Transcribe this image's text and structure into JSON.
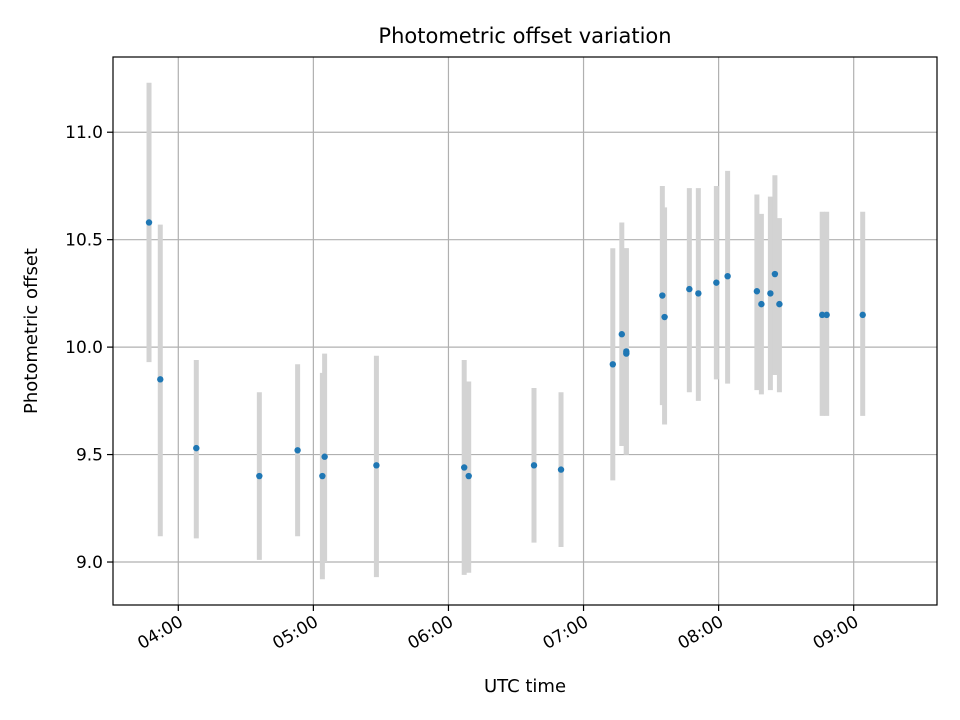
{
  "chart_data": {
    "type": "scatter",
    "title": "Photometric offset variation",
    "xlabel": "UTC time",
    "ylabel": "Photometric offset",
    "x_unit": "UTC time (HH:MM)",
    "xlim": [
      "03:31",
      "09:37"
    ],
    "ylim": [
      8.8,
      11.35
    ],
    "x_ticks": [
      "04:00",
      "05:00",
      "06:00",
      "07:00",
      "08:00",
      "09:00"
    ],
    "y_ticks": [
      "9.0",
      "9.5",
      "10.0",
      "10.5",
      "11.0"
    ],
    "grid": true,
    "colors": {
      "point": "#1f77b4",
      "errorbar": "#d3d3d3",
      "grid": "#b0b0b0"
    },
    "series": [
      {
        "points": [
          {
            "x": "03:47",
            "y": 10.58,
            "ylow": 9.93,
            "yhigh": 11.23
          },
          {
            "x": "03:52",
            "y": 9.85,
            "ylow": 9.12,
            "yhigh": 10.57
          },
          {
            "x": "04:08",
            "y": 9.53,
            "ylow": 9.11,
            "yhigh": 9.94
          },
          {
            "x": "04:36",
            "y": 9.4,
            "ylow": 9.01,
            "yhigh": 9.79
          },
          {
            "x": "04:53",
            "y": 9.52,
            "ylow": 9.12,
            "yhigh": 9.92
          },
          {
            "x": "05:04",
            "y": 9.4,
            "ylow": 8.92,
            "yhigh": 9.88
          },
          {
            "x": "05:05",
            "y": 9.49,
            "ylow": 9.0,
            "yhigh": 9.97
          },
          {
            "x": "05:28",
            "y": 9.45,
            "ylow": 8.93,
            "yhigh": 9.96
          },
          {
            "x": "06:07",
            "y": 9.44,
            "ylow": 8.94,
            "yhigh": 9.94
          },
          {
            "x": "06:09",
            "y": 9.4,
            "ylow": 8.95,
            "yhigh": 9.84
          },
          {
            "x": "06:38",
            "y": 9.45,
            "ylow": 9.09,
            "yhigh": 9.81
          },
          {
            "x": "06:50",
            "y": 9.43,
            "ylow": 9.07,
            "yhigh": 9.79
          },
          {
            "x": "07:13",
            "y": 9.92,
            "ylow": 9.38,
            "yhigh": 10.46
          },
          {
            "x": "07:17",
            "y": 10.06,
            "ylow": 9.54,
            "yhigh": 10.58
          },
          {
            "x": "07:19",
            "y": 9.97,
            "ylow": 9.5,
            "yhigh": 10.46
          },
          {
            "x": "07:19",
            "y": 9.98,
            "ylow": 9.5,
            "yhigh": 10.46
          },
          {
            "x": "07:35",
            "y": 10.24,
            "ylow": 9.73,
            "yhigh": 10.75
          },
          {
            "x": "07:36",
            "y": 10.14,
            "ylow": 9.64,
            "yhigh": 10.65
          },
          {
            "x": "07:47",
            "y": 10.27,
            "ylow": 9.79,
            "yhigh": 10.74
          },
          {
            "x": "07:51",
            "y": 10.25,
            "ylow": 9.75,
            "yhigh": 10.74
          },
          {
            "x": "07:59",
            "y": 10.3,
            "ylow": 9.85,
            "yhigh": 10.75
          },
          {
            "x": "08:04",
            "y": 10.33,
            "ylow": 9.83,
            "yhigh": 10.82
          },
          {
            "x": "08:17",
            "y": 10.26,
            "ylow": 9.8,
            "yhigh": 10.71
          },
          {
            "x": "08:19",
            "y": 10.2,
            "ylow": 9.78,
            "yhigh": 10.62
          },
          {
            "x": "08:23",
            "y": 10.25,
            "ylow": 9.8,
            "yhigh": 10.7
          },
          {
            "x": "08:25",
            "y": 10.34,
            "ylow": 9.87,
            "yhigh": 10.8
          },
          {
            "x": "08:27",
            "y": 10.2,
            "ylow": 9.79,
            "yhigh": 10.6
          },
          {
            "x": "08:46",
            "y": 10.15,
            "ylow": 9.68,
            "yhigh": 10.63
          },
          {
            "x": "08:48",
            "y": 10.15,
            "ylow": 9.68,
            "yhigh": 10.63
          },
          {
            "x": "09:04",
            "y": 10.15,
            "ylow": 9.68,
            "yhigh": 10.63
          }
        ]
      }
    ]
  }
}
